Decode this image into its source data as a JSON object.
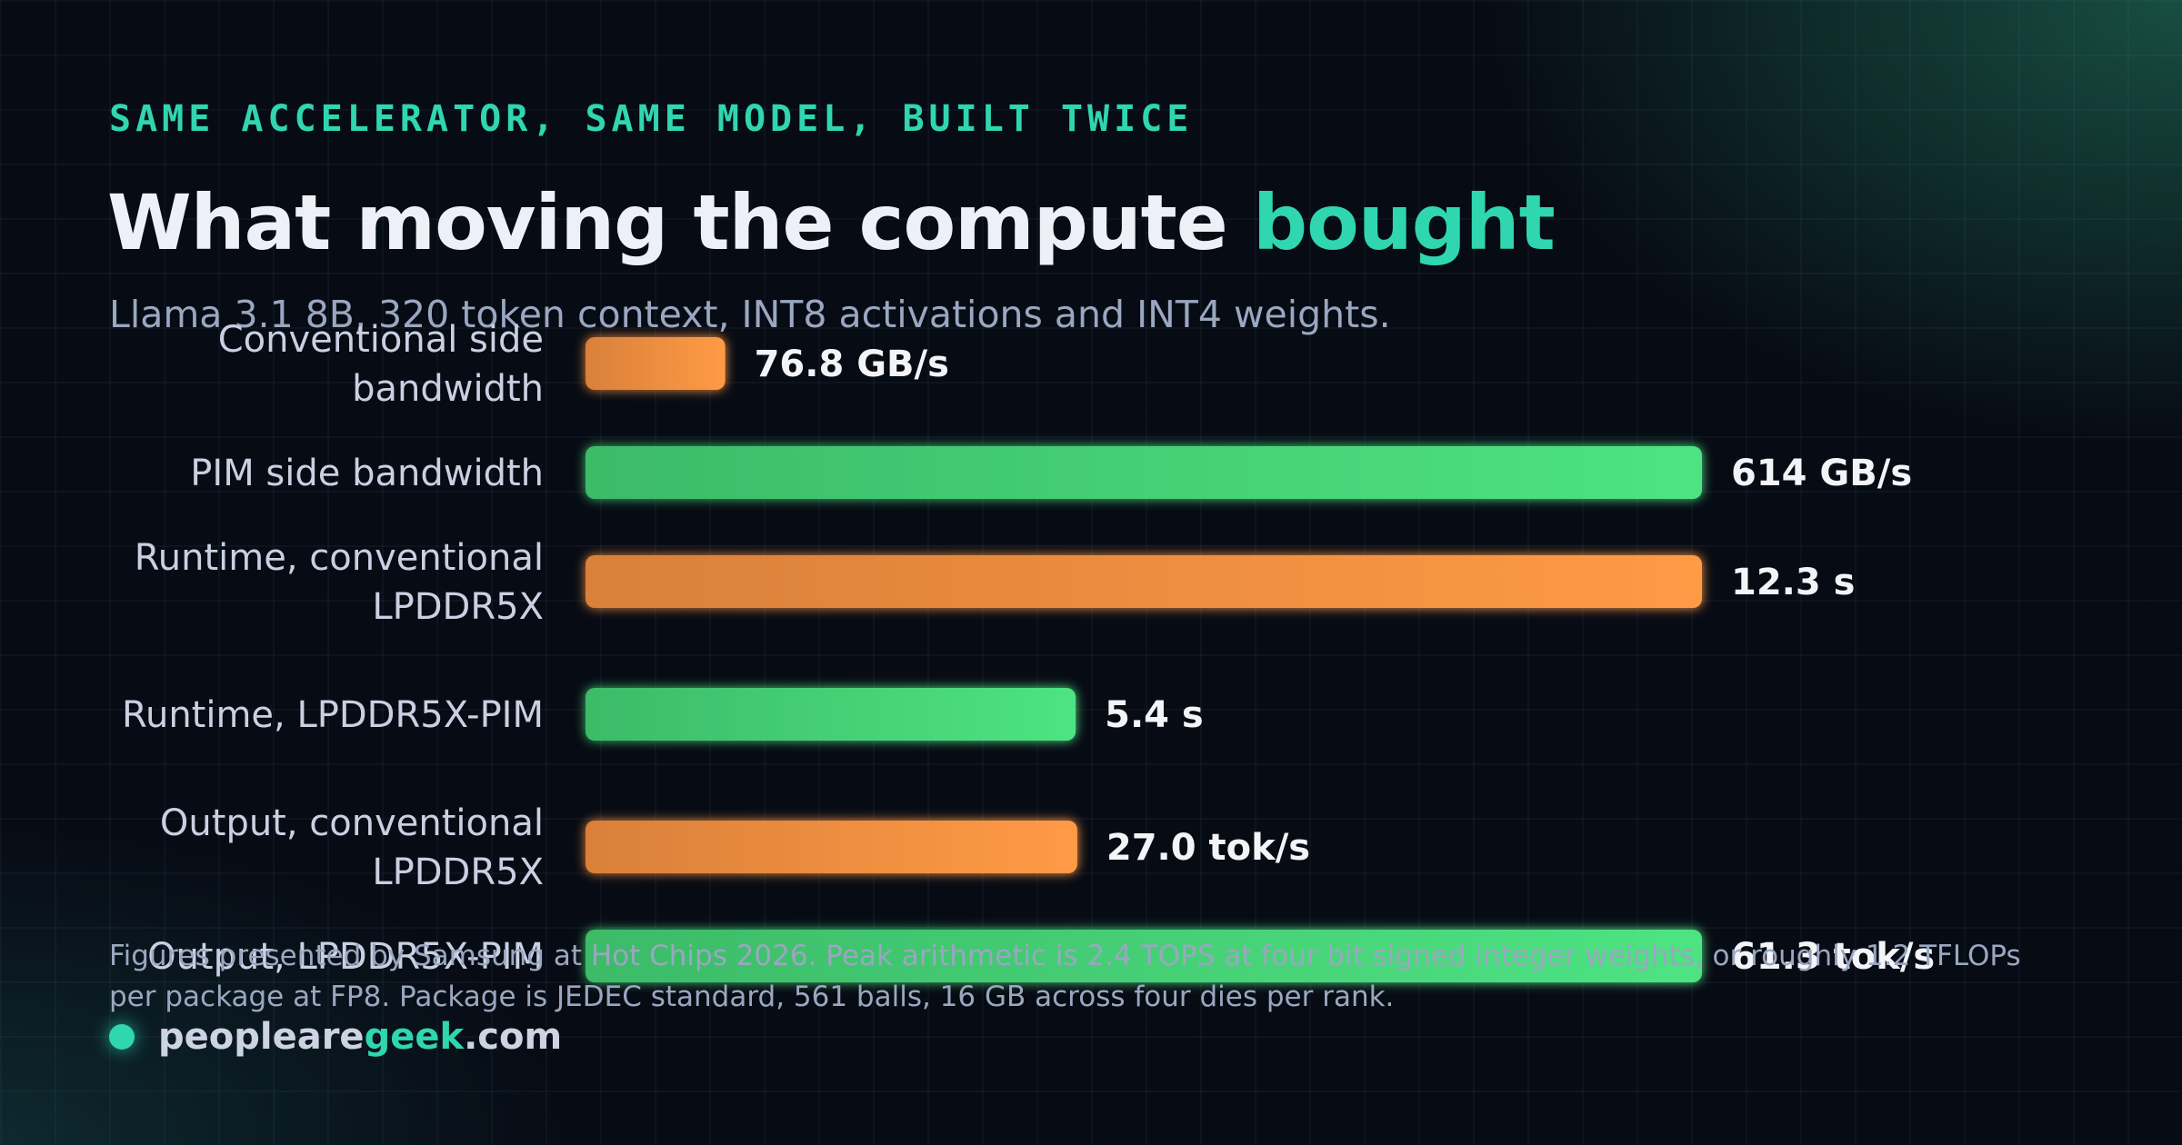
{
  "eyebrow": "SAME ACCELERATOR, SAME MODEL, BUILT TWICE",
  "title": {
    "main": "What moving the compute ",
    "accent": "bought"
  },
  "subtitle": "Llama 3.1 8B, 320 token context, INT8 activations and INT4 weights.",
  "footnote": "Figures presented by Samsung at Hot Chips 2026. Peak arithmetic is 2.4 TOPS at four bit signed integer weights, or roughly 1.2 TFLOPs per package at FP8. Package is JEDEC standard, 561 balls, 16 GB across four dies per rank.",
  "brand": {
    "prefix": "peopleare",
    "accent": "geek",
    "suffix": ".com"
  },
  "colors": {
    "accent": "#2fd6b0",
    "conventional_start": "#d9803a",
    "conventional_end": "#ff9a45",
    "pim_start": "#3cbb68",
    "pim_end": "#4ee383"
  },
  "chart_data": {
    "type": "bar",
    "orientation": "horizontal",
    "bars": [
      {
        "label": "Conventional side bandwidth",
        "value": 76.8,
        "unit": "GB/s",
        "display": "76.8 GB/s",
        "kind": "conventional",
        "group_max": 614
      },
      {
        "label": "PIM side bandwidth",
        "value": 614,
        "unit": "GB/s",
        "display": "614 GB/s",
        "kind": "pim",
        "group_max": 614
      },
      {
        "label": "Runtime, conventional LPDDR5X",
        "value": 12.3,
        "unit": "s",
        "display": "12.3 s",
        "kind": "conventional",
        "group_max": 12.3
      },
      {
        "label": "Runtime, LPDDR5X-PIM",
        "value": 5.4,
        "unit": "s",
        "display": "5.4 s",
        "kind": "pim",
        "group_max": 12.3
      },
      {
        "label": "Output, conventional LPDDR5X",
        "value": 27.0,
        "unit": "tok/s",
        "display": "27.0 tok/s",
        "kind": "conventional",
        "group_max": 61.3
      },
      {
        "label": "Output, LPDDR5X-PIM",
        "value": 61.3,
        "unit": "tok/s",
        "display": "61.3 tok/s",
        "kind": "pim",
        "group_max": 61.3
      }
    ]
  }
}
